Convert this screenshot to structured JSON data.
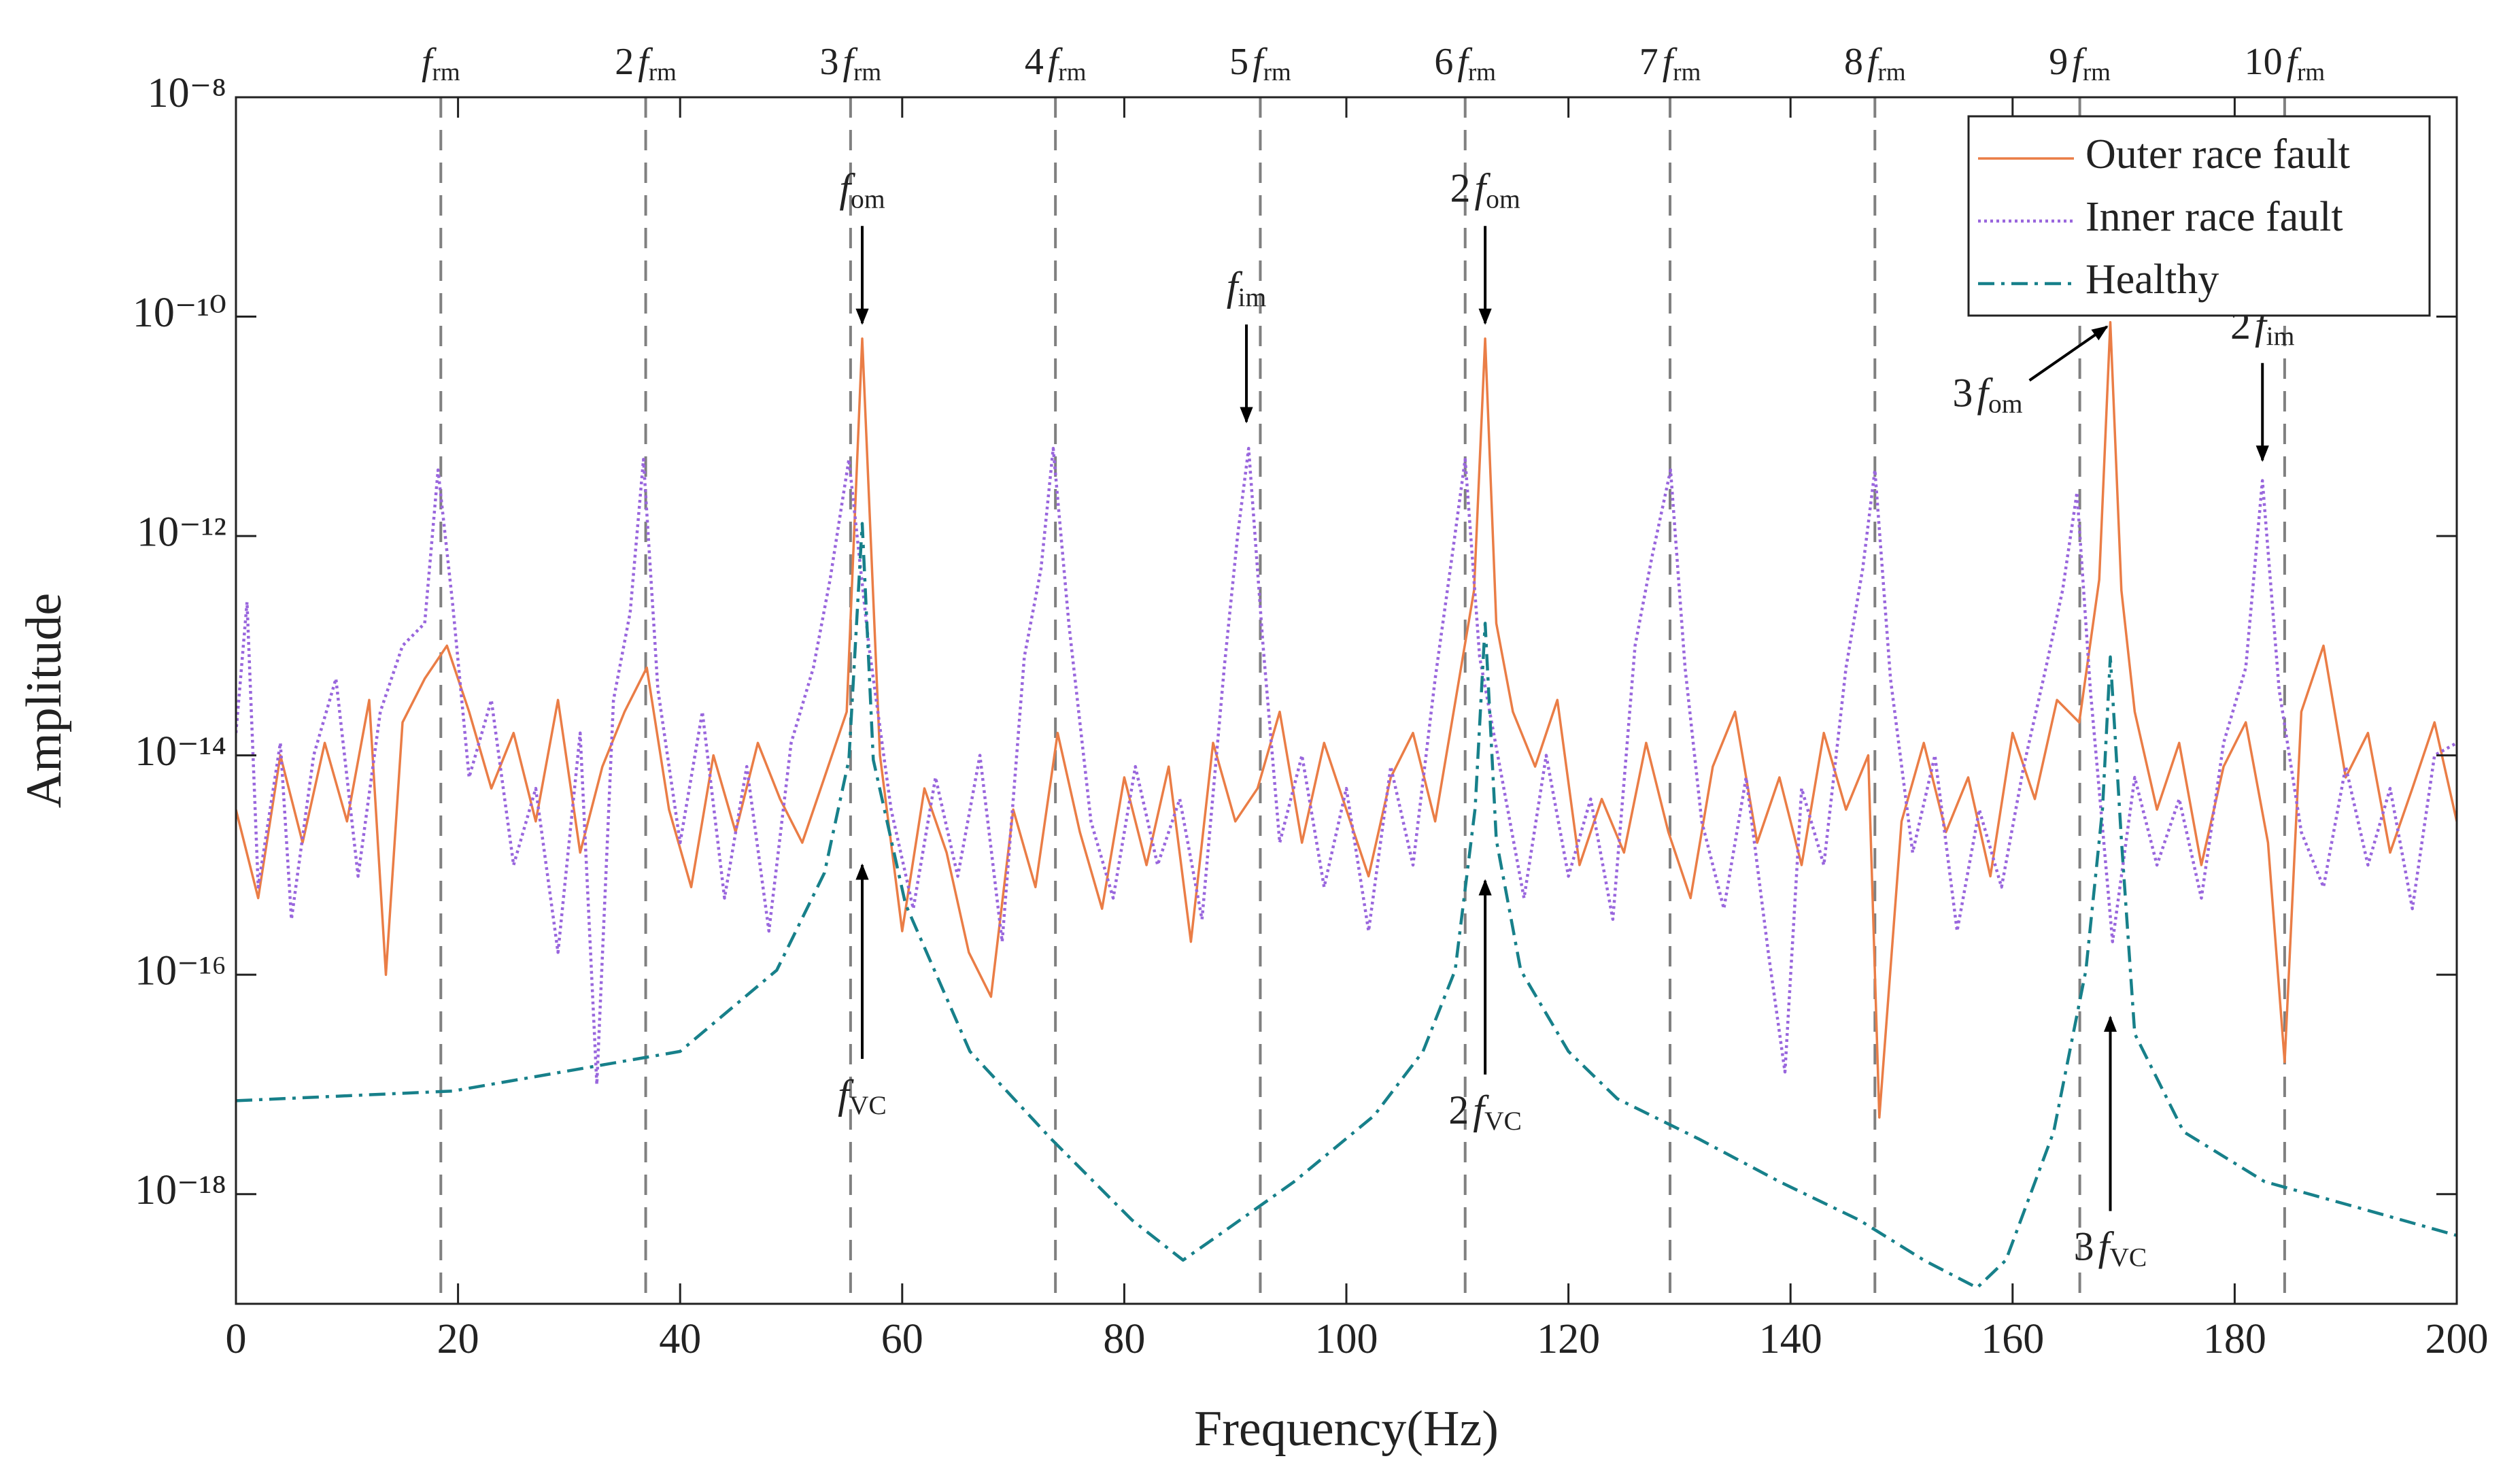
{
  "chart_data": {
    "type": "line",
    "xlabel": "Frequency(Hz)",
    "ylabel": "Amplitude",
    "xlim": [
      0,
      200
    ],
    "xticks": [
      0,
      20,
      40,
      60,
      80,
      100,
      120,
      140,
      160,
      180,
      200
    ],
    "ylim": [
      1e-19,
      1e-08
    ],
    "yscale": "log",
    "yticks": [
      {
        "value": 1e-08,
        "label": "10⁻⁸"
      },
      {
        "value": 1e-10,
        "label": "10⁻¹⁰"
      },
      {
        "value": 1e-12,
        "label": "10⁻¹²"
      },
      {
        "value": 1e-14,
        "label": "10⁻¹⁴"
      },
      {
        "value": 1e-16,
        "label": "10⁻¹⁶"
      },
      {
        "value": 1e-18,
        "label": "10⁻¹⁸"
      }
    ],
    "legend": "upper right",
    "vlines": {
      "color": "#808080",
      "x": [
        18.45,
        36.9,
        55.35,
        73.8,
        92.25,
        110.7,
        129.15,
        147.6,
        166.05,
        184.5
      ],
      "labels": [
        {
          "sym": "f",
          "sub": "rm"
        },
        {
          "coef": "2",
          "sym": "f",
          "sub": "rm"
        },
        {
          "coef": "3",
          "sym": "f",
          "sub": "rm"
        },
        {
          "coef": "4",
          "sym": "f",
          "sub": "rm"
        },
        {
          "coef": "5",
          "sym": "f",
          "sub": "rm"
        },
        {
          "coef": "6",
          "sym": "f",
          "sub": "rm"
        },
        {
          "coef": "7",
          "sym": "f",
          "sub": "rm"
        },
        {
          "coef": "8",
          "sym": "f",
          "sub": "rm"
        },
        {
          "coef": "9",
          "sym": "f",
          "sub": "rm"
        },
        {
          "coef": "10",
          "sym": "f",
          "sub": "rm"
        }
      ]
    },
    "annotations": [
      {
        "sym": "f",
        "sub": "om",
        "x": 56.4,
        "y": 8.7e-11,
        "arrow": "down"
      },
      {
        "sym": "f",
        "sub": "im",
        "x": 91.0,
        "y": 1.1e-11,
        "arrow": "down"
      },
      {
        "coef": "2",
        "sym": "f",
        "sub": "om",
        "x": 112.5,
        "y": 8.7e-11,
        "arrow": "down"
      },
      {
        "coef": "3",
        "sym": "f",
        "sub": "om",
        "x": 168.5,
        "y": 8.1e-11,
        "arrow": "up-right"
      },
      {
        "coef": "2",
        "sym": "f",
        "sub": "im",
        "x": 182.5,
        "y": 4.9e-12,
        "arrow": "down"
      },
      {
        "sym": "f",
        "sub": "VC",
        "x": 56.4,
        "y": 1e-15,
        "arrow": "up"
      },
      {
        "coef": "2",
        "sym": "f",
        "sub": "VC",
        "x": 112.5,
        "y": 7.2e-16,
        "arrow": "up"
      },
      {
        "coef": "3",
        "sym": "f",
        "sub": "VC",
        "x": 168.8,
        "y": 4.1e-17,
        "arrow": "up"
      }
    ],
    "series": [
      {
        "name": "Outer race fault",
        "color": "#ea7d46",
        "style": "solid",
        "x": [
          0,
          2,
          4,
          6,
          8,
          10,
          12,
          13.5,
          15,
          17,
          19,
          21,
          23,
          25,
          27,
          29,
          31,
          33,
          35,
          37,
          39,
          41,
          43,
          45,
          47,
          49,
          51,
          53,
          55,
          56.4,
          58,
          60,
          62,
          64,
          66,
          68,
          70,
          72,
          74,
          76,
          78,
          80,
          82,
          84,
          86,
          88,
          90,
          92,
          94,
          96,
          98,
          100,
          102,
          104,
          106,
          108,
          110,
          111.5,
          112.5,
          113.5,
          115,
          117,
          119,
          121,
          123,
          125,
          127,
          129,
          131,
          133,
          135,
          137,
          139,
          141,
          143,
          145,
          147,
          148,
          150,
          152,
          154,
          156,
          158,
          160,
          162,
          164,
          166,
          167.8,
          168.8,
          169.8,
          171,
          173,
          175,
          177,
          179,
          181,
          183,
          184.5,
          186,
          188,
          190,
          192,
          194,
          196,
          198,
          200
        ],
        "values": [
          3.2e-15,
          5e-16,
          1e-14,
          1.6e-15,
          1.3e-14,
          2.5e-15,
          3.2e-14,
          1e-16,
          2e-14,
          5e-14,
          1e-13,
          2.5e-14,
          5e-15,
          1.6e-14,
          2.5e-15,
          3.2e-14,
          1.3e-15,
          7.9e-15,
          2.5e-14,
          6.3e-14,
          3.2e-15,
          6.3e-16,
          1e-14,
          2e-15,
          1.3e-14,
          4e-15,
          1.6e-15,
          6.3e-15,
          2.5e-14,
          6.3e-11,
          1e-14,
          2.5e-16,
          5e-15,
          1.3e-15,
          1.6e-16,
          6.3e-17,
          3.2e-15,
          6.3e-16,
          1.6e-14,
          2e-15,
          4e-16,
          6.3e-15,
          1e-15,
          7.9e-15,
          2e-16,
          1.3e-14,
          2.5e-15,
          5e-15,
          2.5e-14,
          1.6e-15,
          1.3e-14,
          3.2e-15,
          7.9e-16,
          6.3e-15,
          1.6e-14,
          2.5e-15,
          4e-14,
          3.2e-13,
          6.3e-11,
          1.6e-13,
          2.5e-14,
          7.9e-15,
          3.2e-14,
          1e-15,
          4e-15,
          1.3e-15,
          1.3e-14,
          2e-15,
          5e-16,
          7.9e-15,
          2.5e-14,
          1.6e-15,
          6.3e-15,
          1e-15,
          1.6e-14,
          3.2e-15,
          1e-14,
          5e-18,
          2.5e-15,
          1.3e-14,
          2e-15,
          6.3e-15,
          7.9e-16,
          1.6e-14,
          4e-15,
          3.2e-14,
          2e-14,
          4e-13,
          8.9e-11,
          3.2e-13,
          2.5e-14,
          3.2e-15,
          1.3e-14,
          1e-15,
          7.9e-15,
          2e-14,
          1.6e-15,
          1.6e-17,
          2.5e-14,
          1e-13,
          6.3e-15,
          1.6e-14,
          1.3e-15,
          5e-15,
          2e-14,
          2.5e-15
        ]
      },
      {
        "name": "Inner race fault",
        "color": "#9966dd",
        "style": "dotted",
        "x": [
          0,
          1,
          2,
          4,
          5,
          7,
          9,
          11,
          13,
          15,
          17,
          18.2,
          19.5,
          21,
          23,
          25,
          27,
          29,
          31,
          32.5,
          34,
          35.5,
          36.7,
          38,
          40,
          42,
          44,
          46,
          48,
          50,
          52,
          53.5,
          55.2,
          57,
          59,
          61,
          63,
          65,
          67,
          69,
          71,
          72.5,
          73.6,
          75,
          77,
          79,
          81,
          83,
          85,
          87,
          89,
          90.2,
          91.2,
          92.5,
          94,
          96,
          98,
          100,
          102,
          104,
          106,
          108,
          109.5,
          110.7,
          112,
          114,
          116,
          118,
          120,
          122,
          124,
          126,
          127.5,
          129.2,
          130.5,
          132,
          134,
          136,
          138,
          139.5,
          141,
          143,
          145,
          146.5,
          147.6,
          149,
          151,
          153,
          155,
          157,
          159,
          161,
          163,
          164.5,
          165.8,
          167,
          169,
          171,
          173,
          175,
          177,
          179,
          181,
          182.5,
          184,
          186,
          188,
          190,
          192,
          194,
          196,
          198,
          200
        ],
        "values": [
          1.6e-14,
          2.5e-13,
          6.3e-16,
          1.3e-14,
          3.2e-16,
          1e-14,
          5e-14,
          7.9e-16,
          2.5e-14,
          1e-13,
          1.6e-13,
          4e-12,
          2.5e-13,
          6.3e-15,
          3.2e-14,
          1e-15,
          5e-15,
          1.6e-16,
          1.6e-14,
          1e-17,
          3.2e-14,
          2e-13,
          5e-12,
          4e-14,
          1.6e-15,
          2.5e-14,
          5e-16,
          7.9e-15,
          2.5e-16,
          1.3e-14,
          6.3e-14,
          4e-13,
          5e-12,
          1e-13,
          3.2e-15,
          4e-16,
          6.3e-15,
          7.9e-16,
          1e-14,
          2e-16,
          7.9e-14,
          5e-13,
          6.3e-12,
          1.6e-13,
          2.5e-15,
          5e-16,
          7.9e-15,
          1e-15,
          4e-15,
          3.2e-16,
          6.3e-14,
          1e-12,
          6.3e-12,
          1e-13,
          1.6e-15,
          1e-14,
          6.3e-16,
          5e-15,
          2.5e-16,
          7.9e-15,
          1e-15,
          5e-14,
          6.3e-13,
          5e-12,
          7.9e-14,
          6.3e-15,
          5e-16,
          1e-14,
          7.9e-16,
          4e-15,
          3.2e-16,
          1e-13,
          6.3e-13,
          4e-12,
          6.3e-14,
          2.5e-15,
          4e-16,
          6.3e-15,
          1.6e-16,
          1.3e-17,
          5e-15,
          1e-15,
          6.3e-14,
          5e-13,
          4e-12,
          5e-14,
          1.3e-15,
          1e-14,
          2.5e-16,
          3.2e-15,
          6.3e-16,
          7.9e-15,
          6.3e-14,
          3.2e-13,
          2.5e-12,
          4e-14,
          2e-16,
          6.3e-15,
          1e-15,
          4e-15,
          5e-16,
          1.3e-14,
          6.3e-14,
          3.2e-12,
          4e-14,
          2e-15,
          6.3e-16,
          7.9e-15,
          1e-15,
          5e-15,
          4e-16,
          1e-14,
          1.3e-14
        ]
      },
      {
        "name": "Healthy",
        "color": "#17808a",
        "style": "dashdot",
        "x": [
          0,
          19.5,
          40,
          48.7,
          53,
          55.2,
          56.4,
          57.4,
          60.3,
          66.1,
          73.4,
          80.7,
          85.3,
          89.4,
          95.3,
          102.5,
          106.9,
          109.8,
          111.6,
          112.5,
          113.5,
          115.7,
          120,
          124.4,
          131.7,
          139,
          146.2,
          152,
          156.8,
          159.4,
          163.7,
          166.6,
          168.1,
          168.8,
          169.8,
          171,
          175.4,
          182.7,
          190,
          200
        ],
        "values": [
          7.1e-18,
          8.7e-18,
          2e-17,
          1.1e-16,
          8.5e-16,
          9.1e-15,
          1.3e-12,
          9.1e-15,
          4.4e-16,
          2e-17,
          3.2e-18,
          5.8e-19,
          2.5e-19,
          4.9e-19,
          1.3e-18,
          5.2e-18,
          2e-17,
          1.1e-16,
          3.3e-15,
          1.6e-13,
          1.7e-15,
          1.1e-16,
          2e-17,
          7.4e-18,
          3.2e-18,
          1.3e-18,
          5.8e-19,
          2.5e-19,
          1.4e-19,
          2.5e-19,
          3.7e-18,
          1.1e-16,
          3.3e-15,
          7.9e-14,
          1.7e-15,
          2.9e-17,
          3.7e-18,
          1.3e-18,
          8.1e-19,
          4.2e-19
        ]
      }
    ]
  }
}
